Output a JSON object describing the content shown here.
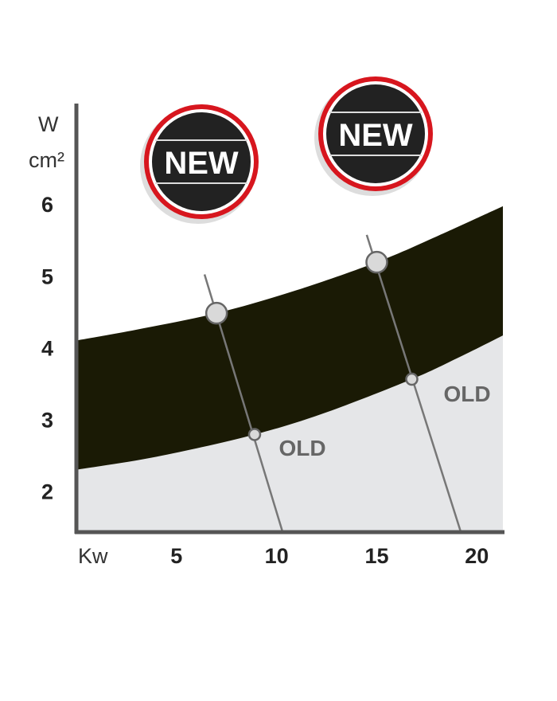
{
  "chart_data": {
    "type": "area",
    "title": "",
    "xlabel": "Kw",
    "ylabel_top": "W",
    "ylabel_bottom": "cm²",
    "xlim": [
      0,
      21.3
    ],
    "ylim": [
      1.43,
      7.4
    ],
    "x_ticks": [
      5,
      10,
      15,
      20
    ],
    "y_ticks": [
      2,
      3,
      4,
      5,
      6
    ],
    "grid": false,
    "series": [
      {
        "name": "NEW",
        "role": "upper boundary of dark band",
        "x": [
          0,
          3,
          7,
          11,
          15,
          18,
          21.3
        ],
        "y": [
          4.1,
          4.25,
          4.48,
          4.8,
          5.19,
          5.55,
          5.97
        ]
      },
      {
        "name": "OLD",
        "role": "lower boundary of dark band / top of grey area",
        "x": [
          0,
          4,
          8.9,
          12.5,
          16.75,
          19,
          21.3
        ],
        "y": [
          2.3,
          2.48,
          2.79,
          3.1,
          3.56,
          3.85,
          4.17
        ]
      }
    ],
    "markers": [
      {
        "label": "NEW",
        "x": 7.0,
        "y": 4.48,
        "size": "large"
      },
      {
        "label": "OLD",
        "x": 8.9,
        "y": 2.79,
        "size": "small"
      },
      {
        "label": "NEW",
        "x": 15.0,
        "y": 5.19,
        "size": "large"
      },
      {
        "label": "OLD",
        "x": 16.75,
        "y": 3.56,
        "size": "small"
      }
    ],
    "connector_lines": [
      {
        "from": [
          6.4,
          5.02
        ],
        "to": [
          10.3,
          1.43
        ]
      },
      {
        "from": [
          14.5,
          5.57
        ],
        "to": [
          19.2,
          1.43
        ]
      }
    ],
    "annotations": [
      "OLD",
      "OLD",
      "NEW",
      "NEW"
    ],
    "colors": {
      "band": "#1a1a05",
      "lower_area": "#e5e6e8",
      "axis": "#555555",
      "badge_ring": "#d7161e",
      "badge_fill": "#222222",
      "marker": "#d9d9d9",
      "old_text": "#666666"
    }
  }
}
